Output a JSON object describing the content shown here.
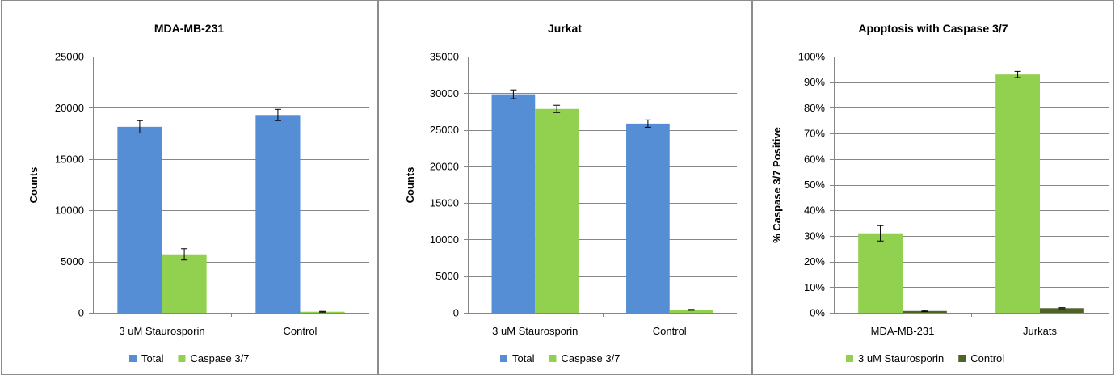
{
  "chart_data": [
    {
      "type": "bar",
      "title": "MDA-MB-231",
      "xlabel": "",
      "ylabel": "Counts",
      "categories": [
        "3 uM Staurosporin",
        "Control"
      ],
      "series": [
        {
          "name": "Total",
          "color": "#558ed5",
          "values": [
            18150,
            19300
          ],
          "errors": [
            600,
            550
          ]
        },
        {
          "name": "Caspase 3/7",
          "color": "#92d050",
          "values": [
            5700,
            100
          ],
          "errors": [
            550,
            40
          ]
        }
      ],
      "ylim": [
        0,
        25000
      ],
      "yticks": [
        0,
        5000,
        10000,
        15000,
        20000,
        25000
      ],
      "ytick_labels": [
        "0",
        "5000",
        "10000",
        "15000",
        "20000",
        "25000"
      ],
      "grid": true,
      "legend": "bottom"
    },
    {
      "type": "bar",
      "title": "Jurkat",
      "xlabel": "",
      "ylabel": "Counts",
      "categories": [
        "3 uM Staurosporin",
        "Control"
      ],
      "series": [
        {
          "name": "Total",
          "color": "#558ed5",
          "values": [
            29850,
            25850
          ],
          "errors": [
            600,
            500
          ]
        },
        {
          "name": "Caspase 3/7",
          "color": "#92d050",
          "values": [
            27850,
            400
          ],
          "errors": [
            500,
            60
          ]
        }
      ],
      "ylim": [
        0,
        35000
      ],
      "yticks": [
        0,
        5000,
        10000,
        15000,
        20000,
        25000,
        30000,
        35000
      ],
      "ytick_labels": [
        "0",
        "5000",
        "10000",
        "15000",
        "20000",
        "25000",
        "30000",
        "35000"
      ],
      "grid": true,
      "legend": "bottom"
    },
    {
      "type": "bar",
      "title": "Apoptosis with Caspase 3/7",
      "xlabel": "",
      "ylabel": "% Caspase 3/7 Positive",
      "categories": [
        "MDA-MB-231",
        "Jurkats"
      ],
      "series": [
        {
          "name": "3 uM Staurosporin",
          "color": "#92d050",
          "values": [
            0.31,
            0.93
          ],
          "errors": [
            0.03,
            0.012
          ]
        },
        {
          "name": "Control",
          "color": "#4f6228",
          "values": [
            0.007,
            0.018
          ],
          "errors": [
            0.002,
            0.002
          ]
        }
      ],
      "ylim": [
        0,
        1
      ],
      "yticks": [
        0,
        0.1,
        0.2,
        0.3,
        0.4,
        0.5,
        0.6,
        0.7,
        0.8,
        0.9,
        1
      ],
      "ytick_labels": [
        "0%",
        "10%",
        "20%",
        "30%",
        "40%",
        "50%",
        "60%",
        "70%",
        "80%",
        "90%",
        "100%"
      ],
      "grid": true,
      "legend": "bottom"
    }
  ]
}
